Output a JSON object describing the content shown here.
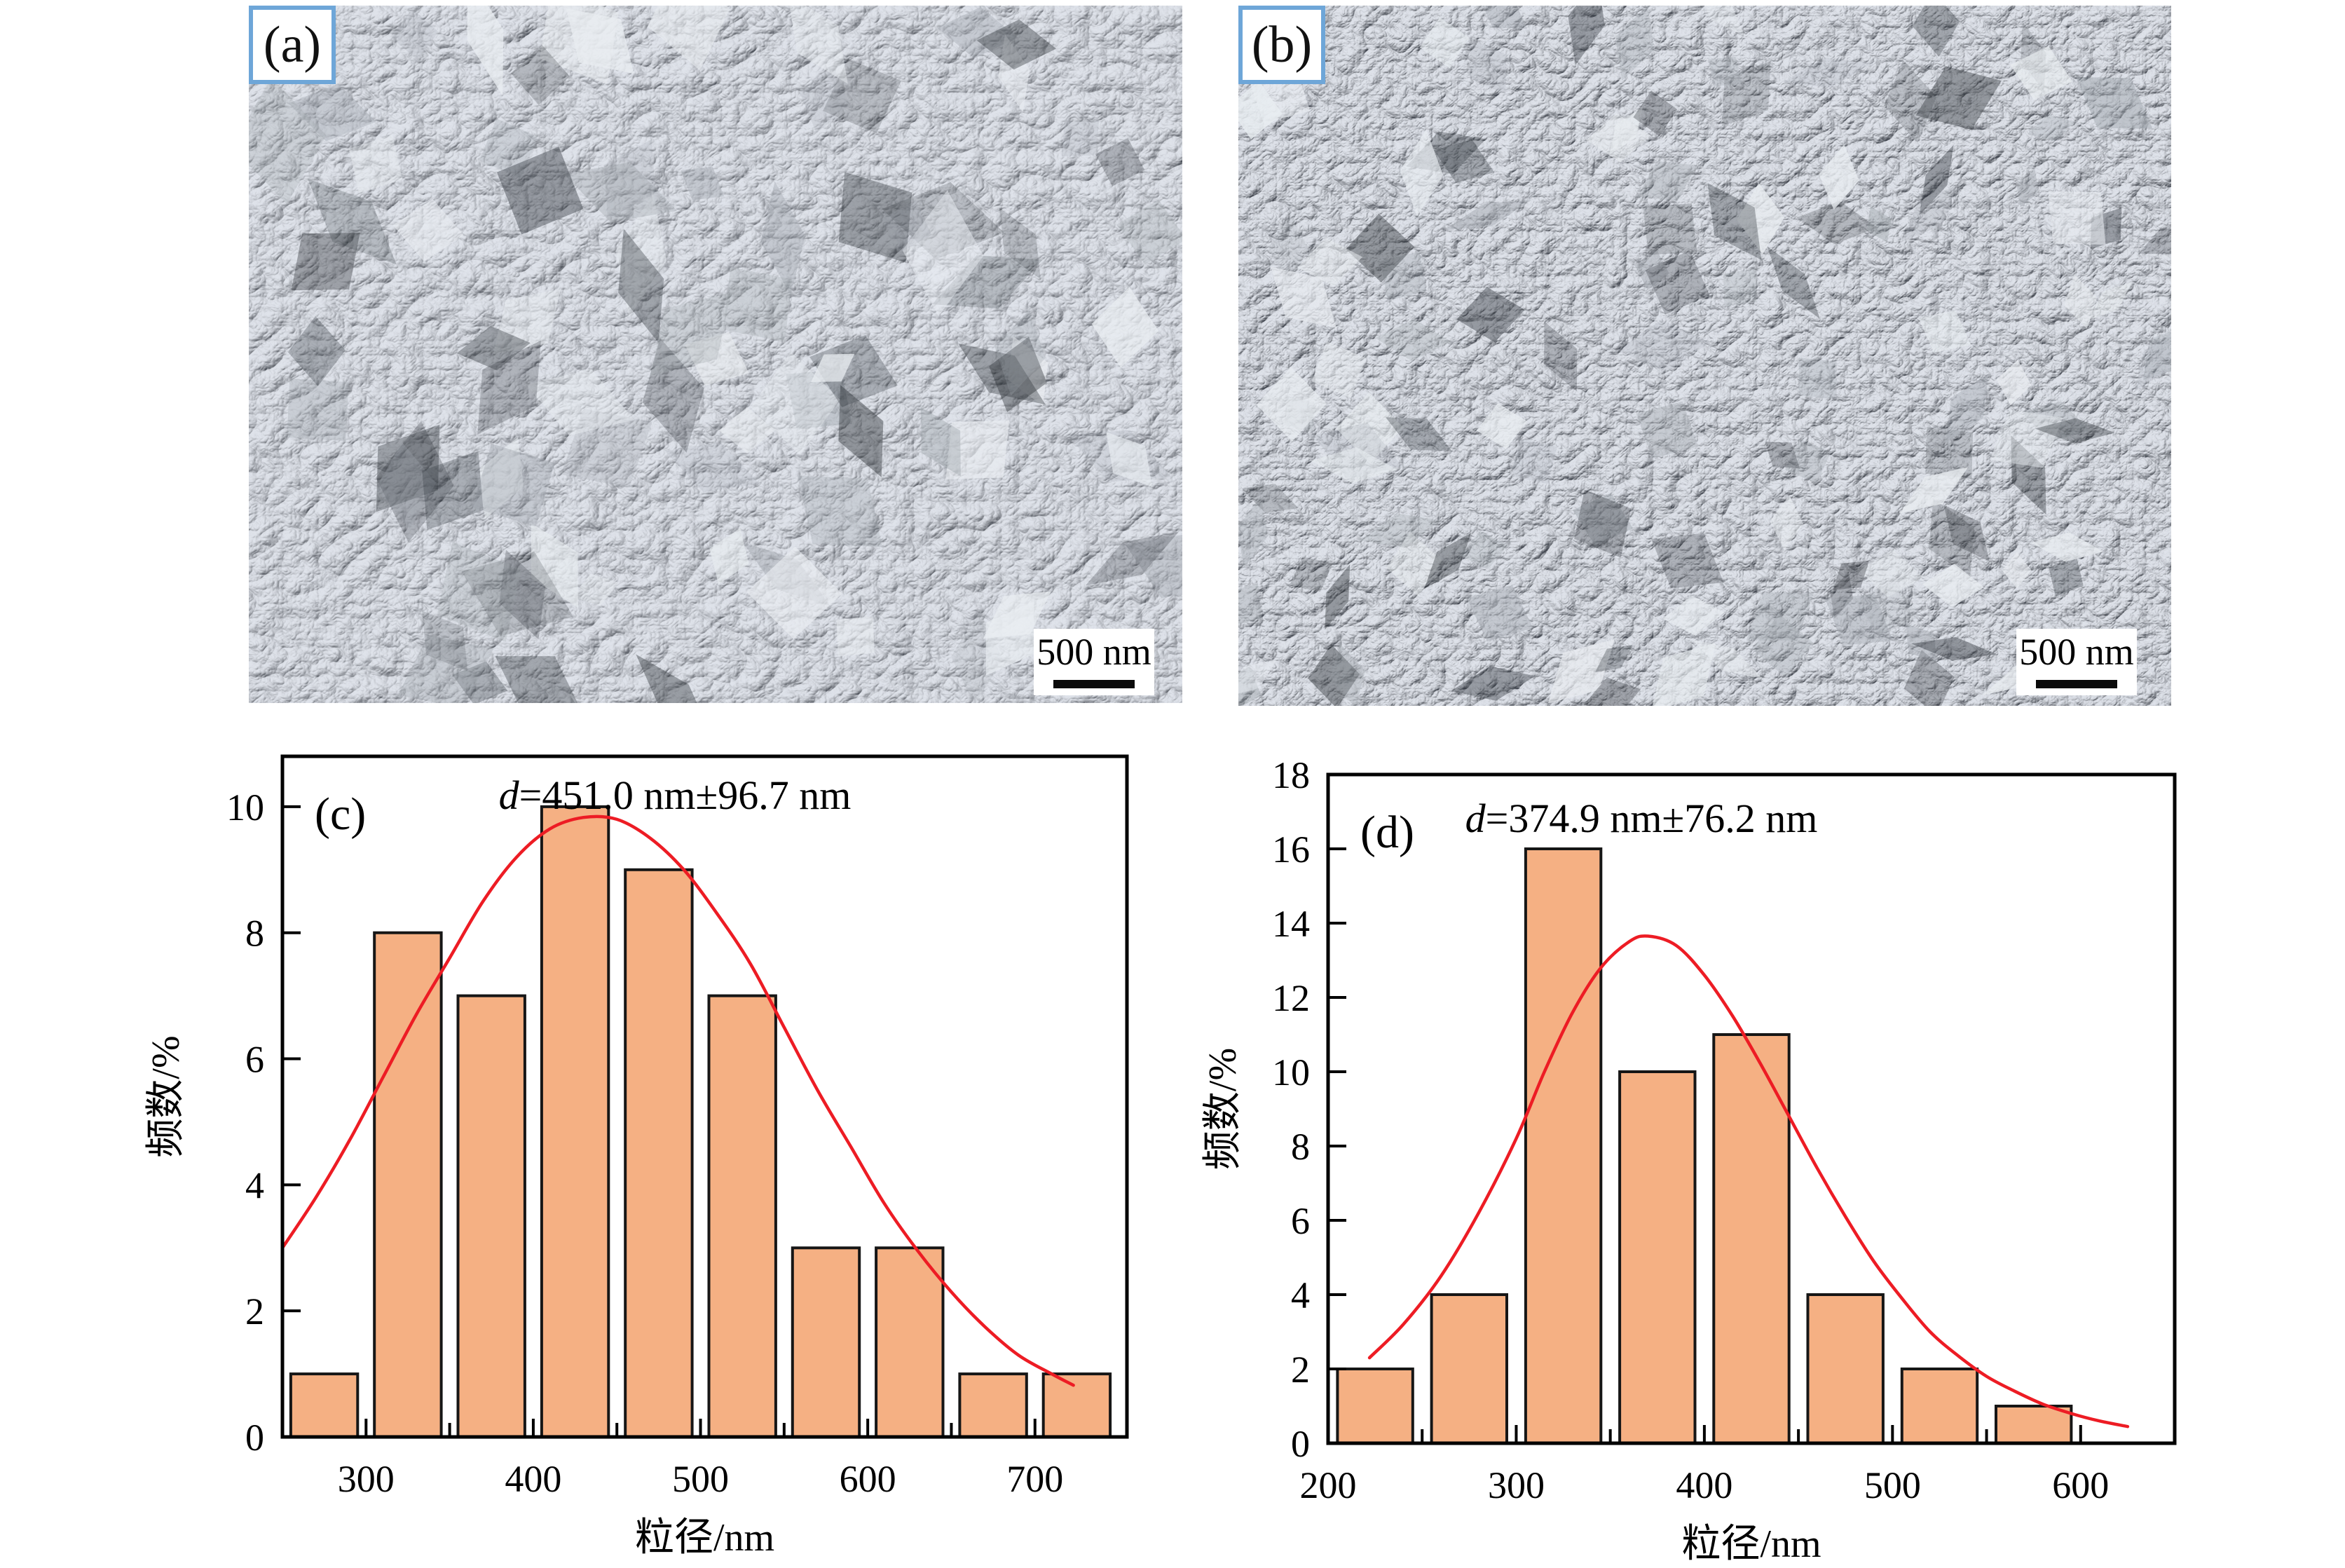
{
  "figure": {
    "panel_a": {
      "label": "(a)",
      "scale_bar_label": "500 nm"
    },
    "panel_b": {
      "label": "(b)",
      "scale_bar_label": "500 nm"
    }
  },
  "colors": {
    "bar_fill": "#f5b083",
    "bar_edge": "#161616",
    "curve_red": "#ed1c24",
    "axis_black": "#000000",
    "label_box_border": "#6ea6d8"
  },
  "chart_data": [
    {
      "type": "bar",
      "panel_label": "(c)",
      "title": "d=451.0 nm±96.7 nm",
      "title_italic": "d",
      "title_rest": "=451.0 nm±96.7 nm",
      "xlabel": "粒径/nm",
      "ylabel": "频数/%",
      "bin_edges": [
        250,
        300,
        350,
        400,
        450,
        500,
        550,
        600,
        650,
        700,
        750
      ],
      "categories": [
        275,
        325,
        375,
        425,
        475,
        525,
        575,
        625,
        675,
        725
      ],
      "values": [
        1,
        8,
        7,
        10,
        9,
        7,
        3,
        3,
        1,
        1
      ],
      "xlim": [
        250,
        755
      ],
      "ylim": [
        0,
        10.8
      ],
      "x_major_ticks": [
        300,
        400,
        500,
        600,
        700
      ],
      "x_minor_ticks": [
        350,
        450,
        550,
        650
      ],
      "y_major_ticks": [
        0,
        2,
        4,
        6,
        8,
        10
      ],
      "grid": false,
      "legend": "none",
      "curve_points": [
        [
          250,
          3.0
        ],
        [
          270,
          3.8
        ],
        [
          290,
          4.7
        ],
        [
          310,
          5.7
        ],
        [
          330,
          6.7
        ],
        [
          350,
          7.6
        ],
        [
          370,
          8.5
        ],
        [
          390,
          9.2
        ],
        [
          410,
          9.65
        ],
        [
          430,
          9.83
        ],
        [
          450,
          9.8
        ],
        [
          470,
          9.5
        ],
        [
          490,
          9.0
        ],
        [
          510,
          8.3
        ],
        [
          530,
          7.5
        ],
        [
          550,
          6.5
        ],
        [
          570,
          5.5
        ],
        [
          590,
          4.6
        ],
        [
          610,
          3.7
        ],
        [
          630,
          2.95
        ],
        [
          650,
          2.3
        ],
        [
          670,
          1.75
        ],
        [
          690,
          1.3
        ],
        [
          710,
          1.0
        ],
        [
          723,
          0.82
        ]
      ]
    },
    {
      "type": "bar",
      "panel_label": "(d)",
      "title": "d=374.9 nm±76.2 nm",
      "title_italic": "d",
      "title_rest": "=374.9 nm±76.2 nm",
      "xlabel": "粒径/nm",
      "ylabel": "频数/%",
      "bin_edges": [
        200,
        250,
        300,
        350,
        400,
        450,
        500,
        550,
        600
      ],
      "categories": [
        225,
        275,
        325,
        375,
        425,
        475,
        525,
        575
      ],
      "values": [
        2,
        4,
        16,
        10,
        11,
        4,
        2,
        1
      ],
      "xlim": [
        200,
        650
      ],
      "ylim": [
        0,
        18
      ],
      "x_major_ticks": [
        200,
        300,
        400,
        500,
        600
      ],
      "x_minor_ticks": [
        250,
        350,
        450,
        550
      ],
      "y_major_ticks": [
        0,
        2,
        4,
        6,
        8,
        10,
        12,
        14,
        16,
        18
      ],
      "grid": false,
      "legend": "none",
      "curve_points": [
        [
          222,
          2.3
        ],
        [
          240,
          3.2
        ],
        [
          260,
          4.5
        ],
        [
          280,
          6.2
        ],
        [
          300,
          8.2
        ],
        [
          315,
          10.0
        ],
        [
          330,
          11.6
        ],
        [
          345,
          12.8
        ],
        [
          360,
          13.5
        ],
        [
          370,
          13.65
        ],
        [
          385,
          13.4
        ],
        [
          400,
          12.6
        ],
        [
          415,
          11.5
        ],
        [
          430,
          10.2
        ],
        [
          445,
          8.8
        ],
        [
          460,
          7.4
        ],
        [
          475,
          6.1
        ],
        [
          490,
          4.9
        ],
        [
          505,
          3.9
        ],
        [
          520,
          3.0
        ],
        [
          535,
          2.35
        ],
        [
          550,
          1.8
        ],
        [
          565,
          1.4
        ],
        [
          580,
          1.05
        ],
        [
          595,
          0.8
        ],
        [
          610,
          0.6
        ],
        [
          625,
          0.45
        ]
      ]
    }
  ]
}
